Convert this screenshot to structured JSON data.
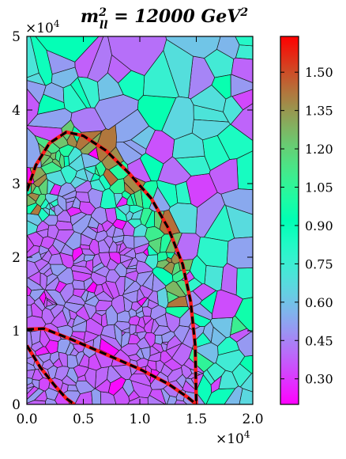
{
  "chart_data": {
    "type": "heatmap",
    "subtype": "voronoi-tessellation",
    "title": {
      "pre": "m",
      "sup": "2",
      "sub": "ll",
      "mid": " = 12000 ",
      "unit": "GeV",
      "unit_sup": "2"
    },
    "x_axis": {
      "range": [
        0,
        20000
      ],
      "ticks": [
        0,
        5000,
        10000,
        15000,
        20000
      ],
      "tick_labels": [
        "0.0",
        "0.5",
        "1.0",
        "1.5",
        "2.0"
      ],
      "multiplier": {
        "base": "×10",
        "exp": "4"
      }
    },
    "y_axis": {
      "range": [
        0,
        50000
      ],
      "ticks": [
        0,
        10000,
        20000,
        30000,
        40000,
        50000
      ],
      "tick_labels": [
        "0",
        "1",
        "2",
        "3",
        "4",
        "5"
      ],
      "multiplier": {
        "base": "×10",
        "exp": "4"
      }
    },
    "colorbar": {
      "range": [
        0.2,
        1.64
      ],
      "ticks": [
        0.3,
        0.45,
        0.6,
        0.75,
        0.9,
        1.05,
        1.2,
        1.35,
        1.5
      ],
      "tick_labels": [
        "0.30",
        "0.45",
        "0.60",
        "0.75",
        "0.90",
        "1.05",
        "1.20",
        "1.35",
        "1.50"
      ],
      "colormap": "rainbow"
    },
    "boundary_curves": {
      "style": "red solid line overlaid with black dashed line",
      "line_colors": [
        "#ff1a1a",
        "#000000"
      ],
      "outer": [
        [
          0,
          29000
        ],
        [
          800,
          32500
        ],
        [
          2000,
          35500
        ],
        [
          3500,
          37000
        ],
        [
          5000,
          36500
        ],
        [
          7000,
          34500
        ],
        [
          9000,
          31500
        ],
        [
          11000,
          28000
        ],
        [
          12500,
          24000
        ],
        [
          13800,
          19000
        ],
        [
          14500,
          14000
        ],
        [
          14900,
          8000
        ],
        [
          15000,
          0
        ]
      ],
      "inner": [
        [
          0,
          8000
        ],
        [
          1200,
          5000
        ],
        [
          2500,
          2500
        ],
        [
          3500,
          800
        ],
        [
          4200,
          0
        ]
      ],
      "lower": [
        [
          0,
          10200
        ],
        [
          1500,
          10300
        ],
        [
          4000,
          8800
        ],
        [
          7000,
          6800
        ],
        [
          10000,
          4800
        ],
        [
          12500,
          2800
        ],
        [
          14200,
          1000
        ],
        [
          15000,
          0
        ]
      ]
    }
  }
}
